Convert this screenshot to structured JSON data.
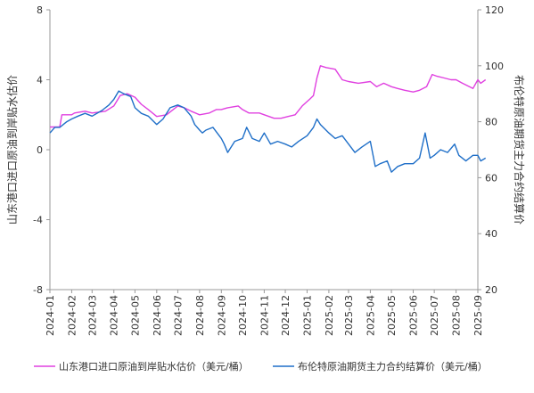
{
  "chart_data": {
    "type": "line",
    "left_axis": {
      "label": "山东港口进口原油到岸贴水估价",
      "range": [
        -8,
        8
      ],
      "ticks": [
        8,
        4,
        0,
        -4,
        -8
      ]
    },
    "right_axis": {
      "label": "布伦特原油期货主力合约结算价",
      "range": [
        20,
        120
      ],
      "ticks": [
        120,
        100,
        80,
        60,
        40,
        20
      ]
    },
    "x_axis": {
      "range": [
        "2024-01",
        "2025-09"
      ],
      "tick_labels": [
        "2024-01",
        "2024-02",
        "2024-03",
        "2024-04",
        "2024-05",
        "2024-06",
        "2024-07",
        "2024-08",
        "2024-09",
        "2024-10",
        "2024-11",
        "2024-12",
        "2025-01",
        "2025-02",
        "2025-03",
        "2025-04",
        "2025-05",
        "2025-06",
        "2025-07",
        "2025-08",
        "2025-09"
      ]
    },
    "grid": false,
    "legend_position": "bottom",
    "series": [
      {
        "name": "山东港口进口原油到岸贴水估价（美元/桶）",
        "axis": "left",
        "color": "#e040e0",
        "points": [
          [
            "2024-01-01",
            1.3
          ],
          [
            "2024-01-15",
            1.3
          ],
          [
            "2024-01-18",
            2.0
          ],
          [
            "2024-02-01",
            2.0
          ],
          [
            "2024-02-05",
            2.1
          ],
          [
            "2024-02-20",
            2.2
          ],
          [
            "2024-03-01",
            2.1
          ],
          [
            "2024-03-20",
            2.2
          ],
          [
            "2024-04-01",
            2.5
          ],
          [
            "2024-04-10",
            3.1
          ],
          [
            "2024-04-20",
            3.2
          ],
          [
            "2024-05-01",
            3.0
          ],
          [
            "2024-05-10",
            2.6
          ],
          [
            "2024-05-20",
            2.3
          ],
          [
            "2024-06-01",
            1.9
          ],
          [
            "2024-06-15",
            2.0
          ],
          [
            "2024-07-01",
            2.5
          ],
          [
            "2024-07-10",
            2.4
          ],
          [
            "2024-07-20",
            2.2
          ],
          [
            "2024-08-01",
            2.0
          ],
          [
            "2024-08-15",
            2.1
          ],
          [
            "2024-08-25",
            2.3
          ],
          [
            "2024-09-01",
            2.3
          ],
          [
            "2024-09-10",
            2.4
          ],
          [
            "2024-09-25",
            2.5
          ],
          [
            "2024-10-01",
            2.3
          ],
          [
            "2024-10-10",
            2.1
          ],
          [
            "2024-10-25",
            2.1
          ],
          [
            "2024-11-01",
            2.0
          ],
          [
            "2024-11-15",
            1.8
          ],
          [
            "2024-11-25",
            1.8
          ],
          [
            "2024-12-05",
            1.9
          ],
          [
            "2024-12-15",
            2.0
          ],
          [
            "2024-12-25",
            2.5
          ],
          [
            "2025-01-05",
            2.9
          ],
          [
            "2025-01-10",
            3.1
          ],
          [
            "2025-01-15",
            4.1
          ],
          [
            "2025-01-20",
            4.8
          ],
          [
            "2025-01-28",
            4.7
          ],
          [
            "2025-02-10",
            4.6
          ],
          [
            "2025-02-20",
            4.0
          ],
          [
            "2025-03-01",
            3.9
          ],
          [
            "2025-03-15",
            3.8
          ],
          [
            "2025-04-01",
            3.9
          ],
          [
            "2025-04-10",
            3.6
          ],
          [
            "2025-04-20",
            3.8
          ],
          [
            "2025-05-01",
            3.6
          ],
          [
            "2025-05-10",
            3.5
          ],
          [
            "2025-05-20",
            3.4
          ],
          [
            "2025-06-01",
            3.3
          ],
          [
            "2025-06-10",
            3.4
          ],
          [
            "2025-06-20",
            3.6
          ],
          [
            "2025-06-28",
            4.3
          ],
          [
            "2025-07-05",
            4.2
          ],
          [
            "2025-07-15",
            4.1
          ],
          [
            "2025-07-25",
            4.0
          ],
          [
            "2025-08-01",
            4.0
          ],
          [
            "2025-08-10",
            3.8
          ],
          [
            "2025-08-20",
            3.6
          ],
          [
            "2025-08-25",
            3.5
          ],
          [
            "2025-09-01",
            4.0
          ],
          [
            "2025-09-05",
            3.8
          ],
          [
            "2025-09-12",
            4.0
          ]
        ]
      },
      {
        "name": "布伦特原油期货主力合约结算价（美元/桶）",
        "axis": "right",
        "color": "#1f6fc8",
        "points": [
          [
            "2024-01-01",
            76
          ],
          [
            "2024-01-08",
            78
          ],
          [
            "2024-01-15",
            78
          ],
          [
            "2024-01-25",
            80
          ],
          [
            "2024-02-01",
            81
          ],
          [
            "2024-02-10",
            82
          ],
          [
            "2024-02-20",
            83
          ],
          [
            "2024-03-01",
            82
          ],
          [
            "2024-03-15",
            84
          ],
          [
            "2024-03-25",
            86
          ],
          [
            "2024-04-01",
            88
          ],
          [
            "2024-04-08",
            91
          ],
          [
            "2024-04-15",
            90
          ],
          [
            "2024-04-25",
            89
          ],
          [
            "2024-05-01",
            85
          ],
          [
            "2024-05-10",
            83
          ],
          [
            "2024-05-20",
            82
          ],
          [
            "2024-06-01",
            79
          ],
          [
            "2024-06-10",
            81
          ],
          [
            "2024-06-20",
            85
          ],
          [
            "2024-07-01",
            86
          ],
          [
            "2024-07-10",
            85
          ],
          [
            "2024-07-20",
            82
          ],
          [
            "2024-07-25",
            79
          ],
          [
            "2024-08-01",
            77
          ],
          [
            "2024-08-05",
            76
          ],
          [
            "2024-08-10",
            77
          ],
          [
            "2024-08-20",
            78
          ],
          [
            "2024-09-01",
            74
          ],
          [
            "2024-09-05",
            72
          ],
          [
            "2024-09-10",
            69
          ],
          [
            "2024-09-20",
            73
          ],
          [
            "2024-10-01",
            74
          ],
          [
            "2024-10-07",
            78
          ],
          [
            "2024-10-15",
            74
          ],
          [
            "2024-10-25",
            73
          ],
          [
            "2024-11-01",
            76
          ],
          [
            "2024-11-10",
            72
          ],
          [
            "2024-11-20",
            73
          ],
          [
            "2024-12-01",
            72
          ],
          [
            "2024-12-10",
            71
          ],
          [
            "2024-12-20",
            73
          ],
          [
            "2025-01-01",
            75
          ],
          [
            "2025-01-10",
            78
          ],
          [
            "2025-01-15",
            81
          ],
          [
            "2025-01-20",
            79
          ],
          [
            "2025-02-01",
            76
          ],
          [
            "2025-02-10",
            74
          ],
          [
            "2025-02-20",
            75
          ],
          [
            "2025-03-01",
            72
          ],
          [
            "2025-03-10",
            69
          ],
          [
            "2025-03-20",
            71
          ],
          [
            "2025-04-01",
            73
          ],
          [
            "2025-04-08",
            64
          ],
          [
            "2025-04-15",
            65
          ],
          [
            "2025-04-25",
            66
          ],
          [
            "2025-05-01",
            62
          ],
          [
            "2025-05-10",
            64
          ],
          [
            "2025-05-20",
            65
          ],
          [
            "2025-06-01",
            65
          ],
          [
            "2025-06-10",
            67
          ],
          [
            "2025-06-18",
            76
          ],
          [
            "2025-06-25",
            67
          ],
          [
            "2025-07-01",
            68
          ],
          [
            "2025-07-10",
            70
          ],
          [
            "2025-07-20",
            69
          ],
          [
            "2025-07-30",
            72
          ],
          [
            "2025-08-05",
            68
          ],
          [
            "2025-08-15",
            66
          ],
          [
            "2025-08-25",
            68
          ],
          [
            "2025-09-01",
            68
          ],
          [
            "2025-09-05",
            66
          ],
          [
            "2025-09-12",
            67
          ]
        ]
      }
    ]
  }
}
